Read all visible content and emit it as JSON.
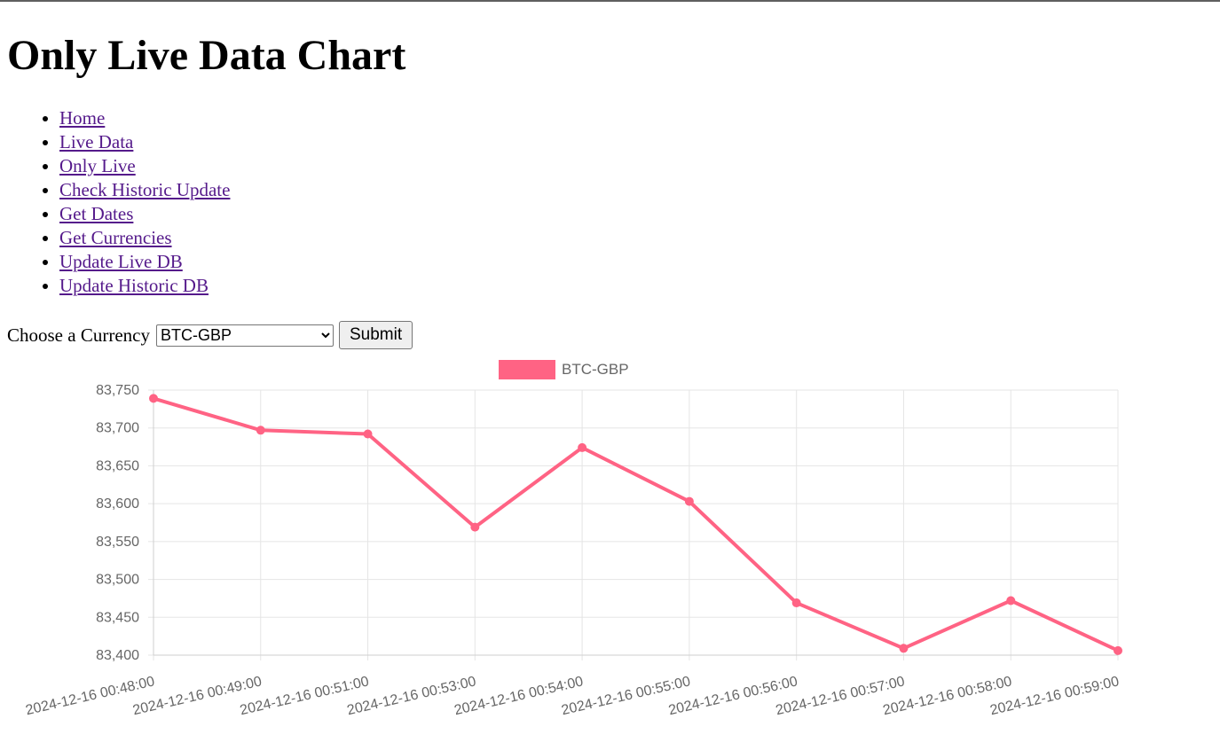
{
  "page": {
    "title": "Only Live Data Chart"
  },
  "nav": {
    "items": [
      {
        "label": "Home"
      },
      {
        "label": "Live Data"
      },
      {
        "label": "Only Live"
      },
      {
        "label": "Check Historic Update"
      },
      {
        "label": "Get Dates"
      },
      {
        "label": "Get Currencies"
      },
      {
        "label": "Update Live DB"
      },
      {
        "label": "Update Historic DB"
      }
    ]
  },
  "form": {
    "label": "Choose a Currency",
    "selected": "BTC-GBP",
    "submit_label": "Submit"
  },
  "colors": {
    "series": "#ff6384",
    "link": "#551a8b",
    "grid": "#e5e5e5",
    "tick_text": "#666666"
  },
  "chart_data": {
    "type": "line",
    "x": [
      "2024-12-16 00:48:00",
      "2024-12-16 00:49:00",
      "2024-12-16 00:51:00",
      "2024-12-16 00:53:00",
      "2024-12-16 00:54:00",
      "2024-12-16 00:55:00",
      "2024-12-16 00:56:00",
      "2024-12-16 00:57:00",
      "2024-12-16 00:58:00",
      "2024-12-16 00:59:00"
    ],
    "series": [
      {
        "name": "BTC-GBP",
        "values": [
          83739,
          83697,
          83692,
          83569,
          83674,
          83603,
          83469,
          83409,
          83472,
          83406
        ]
      }
    ],
    "ylim": [
      83400,
      83750
    ],
    "yticks": [
      83750,
      83700,
      83650,
      83600,
      83550,
      83500,
      83450,
      83400
    ],
    "ytick_labels": [
      "83,750",
      "83,700",
      "83,650",
      "83,600",
      "83,550",
      "83,500",
      "83,450",
      "83,400"
    ],
    "grid": true,
    "legend": "top-center"
  }
}
